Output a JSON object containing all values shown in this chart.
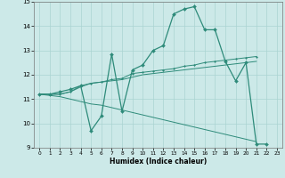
{
  "xlabel": "Humidex (Indice chaleur)",
  "x_values": [
    0,
    1,
    2,
    3,
    4,
    5,
    6,
    7,
    8,
    9,
    10,
    11,
    12,
    13,
    14,
    15,
    16,
    17,
    18,
    19,
    20,
    21,
    22,
    23
  ],
  "line1": [
    11.2,
    11.2,
    11.3,
    11.4,
    11.55,
    9.7,
    10.3,
    12.85,
    10.5,
    12.2,
    12.4,
    13.0,
    13.2,
    14.5,
    14.7,
    14.8,
    13.85,
    13.85,
    12.55,
    11.75,
    12.5,
    9.15,
    9.15,
    null
  ],
  "line2": [
    11.2,
    11.2,
    11.2,
    11.3,
    11.55,
    11.65,
    11.7,
    11.8,
    11.85,
    12.05,
    12.1,
    12.15,
    12.2,
    12.25,
    12.35,
    12.4,
    12.5,
    12.55,
    12.6,
    12.65,
    12.7,
    12.75,
    null,
    null
  ],
  "line3": [
    11.2,
    11.15,
    11.1,
    11.0,
    10.9,
    10.8,
    10.75,
    10.65,
    10.55,
    10.45,
    10.35,
    10.25,
    10.15,
    10.05,
    9.95,
    9.85,
    9.75,
    9.65,
    9.55,
    9.45,
    9.35,
    9.25,
    null,
    null
  ],
  "line4": [
    11.2,
    11.2,
    11.2,
    11.3,
    11.5,
    11.65,
    11.7,
    11.75,
    11.8,
    11.9,
    12.0,
    12.05,
    12.1,
    12.15,
    12.2,
    12.25,
    12.3,
    12.35,
    12.4,
    12.45,
    12.5,
    12.55,
    null,
    null
  ],
  "color": "#2e8b7a",
  "bg_color": "#cce9e8",
  "grid_color": "#aad4d2",
  "ylim": [
    9,
    15
  ],
  "xlim": [
    -0.5,
    23.5
  ],
  "yticks": [
    9,
    10,
    11,
    12,
    13,
    14,
    15
  ],
  "xticks": [
    0,
    1,
    2,
    3,
    4,
    5,
    6,
    7,
    8,
    9,
    10,
    11,
    12,
    13,
    14,
    15,
    16,
    17,
    18,
    19,
    20,
    21,
    22,
    23
  ]
}
